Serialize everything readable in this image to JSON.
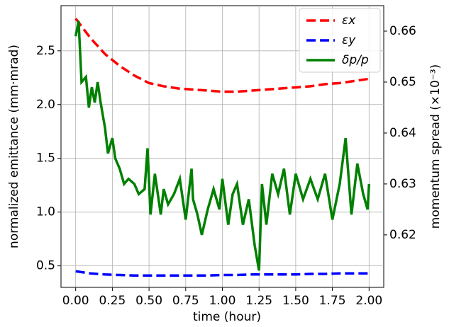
{
  "chart_data": {
    "type": "line",
    "xlabel": "time (hour)",
    "ylabel": "normalized emittance (mm·mrad)",
    "y2label": "momentum spread (×10⁻³)",
    "xlim": [
      -0.1,
      2.1
    ],
    "ylim": [
      0.3,
      2.92
    ],
    "y2lim": [
      0.6097,
      0.665
    ],
    "xticks": [
      {
        "value": 0,
        "label": "0.00"
      },
      {
        "value": 0.25,
        "label": "0.25"
      },
      {
        "value": 0.5,
        "label": "0.50"
      },
      {
        "value": 0.75,
        "label": "0.75"
      },
      {
        "value": 1,
        "label": "1.00"
      },
      {
        "value": 1.25,
        "label": "1.25"
      },
      {
        "value": 1.5,
        "label": "1.50"
      },
      {
        "value": 1.75,
        "label": "1.75"
      },
      {
        "value": 2,
        "label": "2.00"
      }
    ],
    "yticks": [
      0.5,
      {
        "value": 1,
        "label": "1.0"
      },
      1.5,
      {
        "value": 2,
        "label": "2.0"
      },
      2.5
    ],
    "y2ticks": [
      0.62,
      0.63,
      0.64,
      0.65,
      0.66
    ],
    "grid": true,
    "legend": "upper right",
    "series": [
      {
        "name": "εx",
        "color": "#ff0000",
        "dash": true,
        "x": [
          0,
          0.1,
          0.2,
          0.3,
          0.4,
          0.5,
          0.6,
          0.7,
          0.8,
          0.9,
          1.0,
          1.1,
          1.2,
          1.3,
          1.4,
          1.5,
          1.6,
          1.7,
          1.8,
          1.9,
          2.0
        ],
        "values": [
          2.8,
          2.62,
          2.47,
          2.36,
          2.27,
          2.2,
          2.17,
          2.15,
          2.14,
          2.13,
          2.12,
          2.12,
          2.13,
          2.14,
          2.15,
          2.16,
          2.17,
          2.19,
          2.2,
          2.22,
          2.24
        ]
      },
      {
        "name": "εy",
        "color": "#0000ff",
        "dash": true,
        "x": [
          0,
          0.1,
          0.2,
          0.3,
          0.4,
          0.5,
          0.6,
          0.7,
          0.8,
          0.9,
          1.0,
          1.1,
          1.2,
          1.3,
          1.4,
          1.5,
          1.6,
          1.7,
          1.8,
          1.9,
          2.0
        ],
        "values": [
          0.45,
          0.43,
          0.42,
          0.415,
          0.41,
          0.41,
          0.41,
          0.41,
          0.41,
          0.41,
          0.415,
          0.415,
          0.42,
          0.42,
          0.42,
          0.42,
          0.425,
          0.425,
          0.43,
          0.43,
          0.43
        ]
      },
      {
        "name": "δp/p",
        "color": "#008000",
        "dash": false,
        "axis": "y2",
        "x": [
          0,
          0.02,
          0.04,
          0.07,
          0.09,
          0.11,
          0.13,
          0.15,
          0.17,
          0.2,
          0.22,
          0.25,
          0.27,
          0.3,
          0.33,
          0.36,
          0.4,
          0.43,
          0.47,
          0.49,
          0.51,
          0.54,
          0.58,
          0.6,
          0.63,
          0.67,
          0.71,
          0.75,
          0.79,
          0.8,
          0.83,
          0.86,
          0.9,
          0.94,
          0.98,
          1.0,
          1.04,
          1.07,
          1.1,
          1.14,
          1.18,
          1.22,
          1.25,
          1.27,
          1.3,
          1.34,
          1.38,
          1.42,
          1.46,
          1.5,
          1.55,
          1.6,
          1.65,
          1.7,
          1.75,
          1.8,
          1.84,
          1.88,
          1.92,
          1.96,
          1.99,
          2.0
        ],
        "values": [
          0.659,
          0.662,
          0.65,
          0.651,
          0.645,
          0.649,
          0.646,
          0.65,
          0.646,
          0.641,
          0.636,
          0.639,
          0.635,
          0.633,
          0.63,
          0.631,
          0.63,
          0.628,
          0.629,
          0.637,
          0.624,
          0.632,
          0.624,
          0.629,
          0.626,
          0.628,
          0.631,
          0.623,
          0.633,
          0.627,
          0.624,
          0.62,
          0.625,
          0.629,
          0.625,
          0.631,
          0.622,
          0.628,
          0.63,
          0.622,
          0.627,
          0.618,
          0.613,
          0.63,
          0.622,
          0.632,
          0.628,
          0.633,
          0.624,
          0.632,
          0.627,
          0.631,
          0.627,
          0.632,
          0.623,
          0.63,
          0.639,
          0.624,
          0.634,
          0.628,
          0.625,
          0.63
        ]
      }
    ]
  }
}
